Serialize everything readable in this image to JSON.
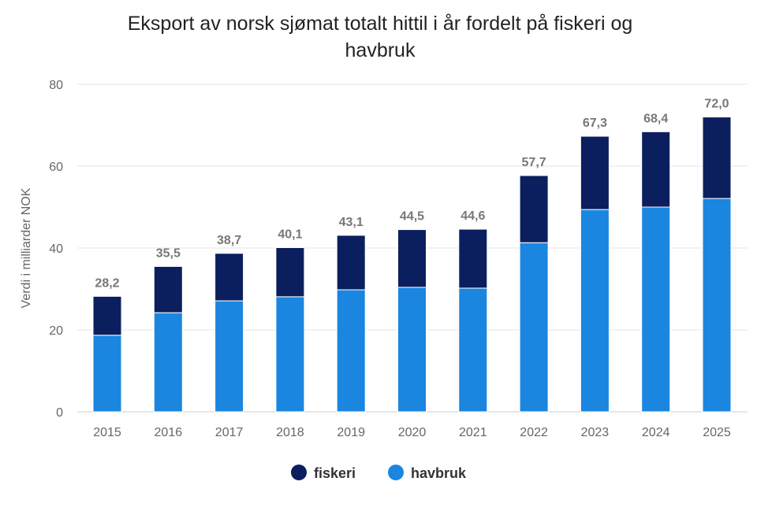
{
  "chart_data": {
    "type": "bar",
    "stacked": true,
    "title_lines": [
      "Eksport av norsk sjømat totalt hittil i år fordelt på fiskeri og",
      "havbruk"
    ],
    "xlabel": "",
    "ylabel": "Verdi i milliarder NOK",
    "ylim": [
      0,
      80
    ],
    "yticks": [
      0,
      20,
      40,
      60,
      80
    ],
    "grid": true,
    "legend_placement": "bottom",
    "categories": [
      "2015",
      "2016",
      "2017",
      "2018",
      "2019",
      "2020",
      "2021",
      "2022",
      "2023",
      "2024",
      "2025"
    ],
    "series": [
      {
        "name": "havbruk",
        "color": "#1a86e0",
        "values": [
          18.7,
          24.2,
          27.1,
          28.1,
          29.8,
          30.4,
          30.2,
          41.3,
          49.4,
          50.0,
          52.1
        ]
      },
      {
        "name": "fiskeri",
        "color": "#0b1f5e",
        "values": [
          9.5,
          11.3,
          11.6,
          12.0,
          13.3,
          14.1,
          14.4,
          16.4,
          17.9,
          18.4,
          19.9
        ]
      }
    ],
    "total_labels": [
      "28,2",
      "35,5",
      "38,7",
      "40,1",
      "43,1",
      "44,5",
      "44,6",
      "57,7",
      "67,3",
      "68,4",
      "72,0"
    ],
    "legend": [
      "fiskeri",
      "havbruk"
    ]
  }
}
